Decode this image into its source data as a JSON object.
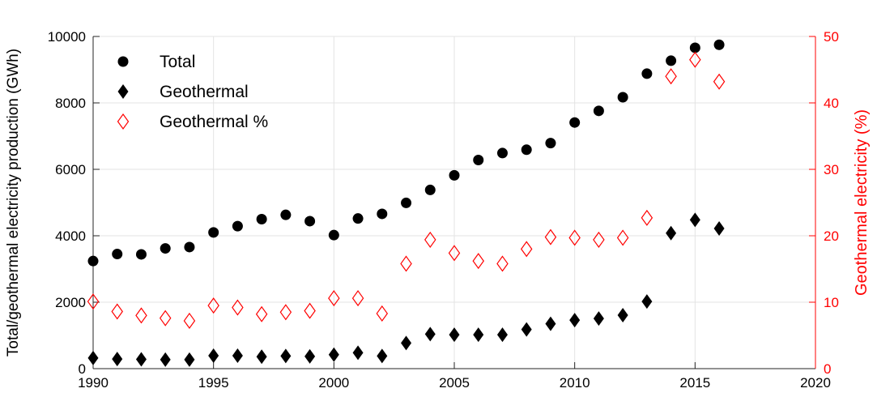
{
  "chart_data": {
    "type": "scatter",
    "title": "",
    "xlabel": "",
    "ylabel": "Total/geothermal electricity production (GWh)",
    "y2label": "Geothermal electricity (%)",
    "xlim": [
      1990,
      2020
    ],
    "ylim": [
      0,
      10000
    ],
    "y2lim": [
      0,
      50
    ],
    "x_ticks": [
      "1990",
      "1995",
      "2000",
      "2005",
      "2010",
      "2015",
      "2020"
    ],
    "y_ticks": [
      "0",
      "2000",
      "4000",
      "6000",
      "8000",
      "10000"
    ],
    "y2_ticks": [
      "0",
      "10",
      "20",
      "30",
      "40",
      "50"
    ],
    "grid": true,
    "legend_position": "top-left",
    "colors": {
      "primary": "#000000",
      "secondary_axis": "#ff0000"
    },
    "series": [
      {
        "name": "Total",
        "axis": "left",
        "marker": "filled-circle",
        "color": "#000000",
        "x": [
          1990,
          1991,
          1992,
          1993,
          1994,
          1995,
          1996,
          1997,
          1998,
          1999,
          2000,
          2001,
          2002,
          2003,
          2004,
          2005,
          2006,
          2007,
          2008,
          2009,
          2010,
          2011,
          2012,
          2013,
          2014,
          2015,
          2016
        ],
        "y": [
          3240,
          3450,
          3440,
          3620,
          3660,
          4100,
          4290,
          4500,
          4630,
          4440,
          4020,
          4520,
          4660,
          4990,
          5380,
          5820,
          6280,
          6490,
          6590,
          6790,
          7410,
          7760,
          8170,
          8880,
          9270,
          9660,
          9750
        ]
      },
      {
        "name": "Geothermal",
        "axis": "left",
        "marker": "filled-diamond",
        "color": "#000000",
        "x": [
          1990,
          1991,
          1992,
          1993,
          1994,
          1995,
          1996,
          1997,
          1998,
          1999,
          2000,
          2001,
          2002,
          2003,
          2004,
          2005,
          2006,
          2007,
          2008,
          2009,
          2010,
          2011,
          2012,
          2013,
          2014,
          2015,
          2016
        ],
        "y": [
          320,
          290,
          280,
          270,
          270,
          390,
          390,
          360,
          380,
          370,
          420,
          480,
          380,
          770,
          1040,
          1020,
          1020,
          1020,
          1180,
          1350,
          1460,
          1510,
          1610,
          2020,
          4080,
          4480,
          4220
        ]
      },
      {
        "name": "Geothermal %",
        "axis": "right",
        "marker": "open-diamond",
        "color": "#ff0000",
        "x": [
          1990,
          1991,
          1992,
          1993,
          1994,
          1995,
          1996,
          1997,
          1998,
          1999,
          2000,
          2001,
          2002,
          2003,
          2004,
          2005,
          2006,
          2007,
          2008,
          2009,
          2010,
          2011,
          2012,
          2013,
          2014,
          2015,
          2016
        ],
        "y": [
          10.1,
          8.6,
          8.0,
          7.6,
          7.2,
          9.5,
          9.2,
          8.2,
          8.5,
          8.7,
          10.6,
          10.6,
          8.3,
          15.8,
          19.4,
          17.4,
          16.2,
          15.8,
          18.0,
          19.8,
          19.7,
          19.4,
          19.7,
          22.7,
          44.0,
          46.5,
          43.2
        ]
      }
    ]
  }
}
